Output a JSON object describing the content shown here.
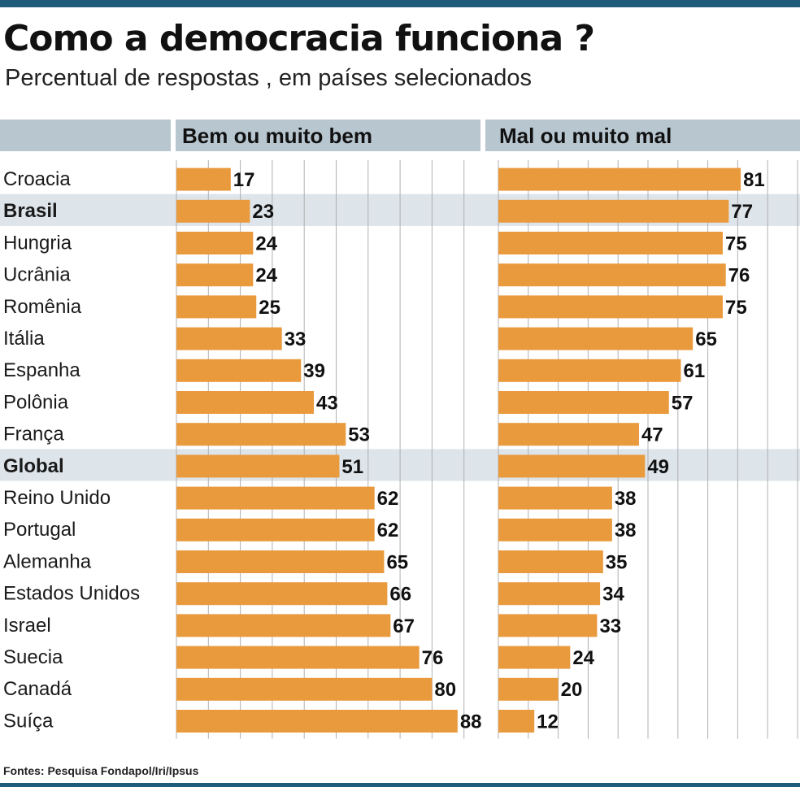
{
  "title": "Como a democracia funciona ?",
  "subtitle": "Percentual de respostas  , em países selecionados",
  "source": "Fontes: Pesquisa Fondapol/Iri/Ipsus",
  "colors": {
    "bar": "#e99a3c",
    "header_band": "#b8c6d0",
    "highlight_row": "#dde4ea",
    "grid": "#b0b0b0",
    "rule": "#1f5b7a"
  },
  "chart_data": [
    {
      "type": "bar",
      "orientation": "horizontal",
      "title": "Bem ou muito bem",
      "categories": [
        "Croacia",
        "Brasil",
        "Hungria",
        "Ucrânia",
        "Romênia",
        "Itália",
        "Espanha",
        "Polônia",
        "França",
        "Global",
        "Reino Unido",
        "Portugal",
        "Alemanha",
        "Estados Unidos",
        "Israel",
        "Suecia",
        "Canadá",
        "Suíça"
      ],
      "values": [
        17,
        23,
        24,
        24,
        25,
        33,
        39,
        43,
        53,
        51,
        62,
        62,
        65,
        66,
        67,
        76,
        80,
        88
      ],
      "highlighted": [
        "Brasil",
        "Global"
      ],
      "xlim": [
        0,
        100
      ],
      "grid": true
    },
    {
      "type": "bar",
      "orientation": "horizontal",
      "title": "Mal ou muito mal",
      "categories": [
        "Croacia",
        "Brasil",
        "Hungria",
        "Ucrânia",
        "Romênia",
        "Itália",
        "Espanha",
        "Polônia",
        "França",
        "Global",
        "Reino Unido",
        "Portugal",
        "Alemanha",
        "Estados Unidos",
        "Israel",
        "Suecia",
        "Canadá",
        "Suíça"
      ],
      "values": [
        81,
        77,
        75,
        76,
        75,
        65,
        61,
        57,
        47,
        49,
        38,
        38,
        35,
        34,
        33,
        24,
        20,
        12
      ],
      "highlighted": [
        "Brasil",
        "Global"
      ],
      "xlim": [
        0,
        100
      ],
      "grid": true
    }
  ]
}
